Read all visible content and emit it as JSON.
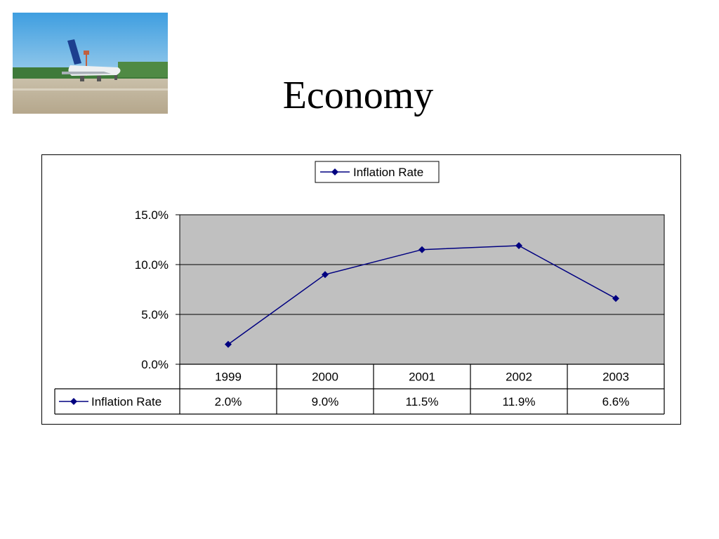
{
  "slide": {
    "title": "Economy"
  },
  "chart_data": {
    "type": "line",
    "title": "",
    "xlabel": "",
    "ylabel": "",
    "categories": [
      "1999",
      "2000",
      "2001",
      "2002",
      "2003"
    ],
    "series": [
      {
        "name": "Inflation Rate",
        "values": [
          2.0,
          9.0,
          11.5,
          11.9,
          6.6
        ]
      }
    ],
    "value_labels": [
      "2.0%",
      "9.0%",
      "11.5%",
      "11.9%",
      "6.6%"
    ],
    "ylim": [
      0,
      15
    ],
    "yticks": [
      0,
      5,
      10,
      15
    ],
    "ytick_labels": [
      "0.0%",
      "5.0%",
      "10.0%",
      "15.0%"
    ],
    "grid": true,
    "legend": "top-center",
    "data_table": true,
    "colors": {
      "series": "#000080",
      "plot_background": "#c0c0c0"
    }
  }
}
